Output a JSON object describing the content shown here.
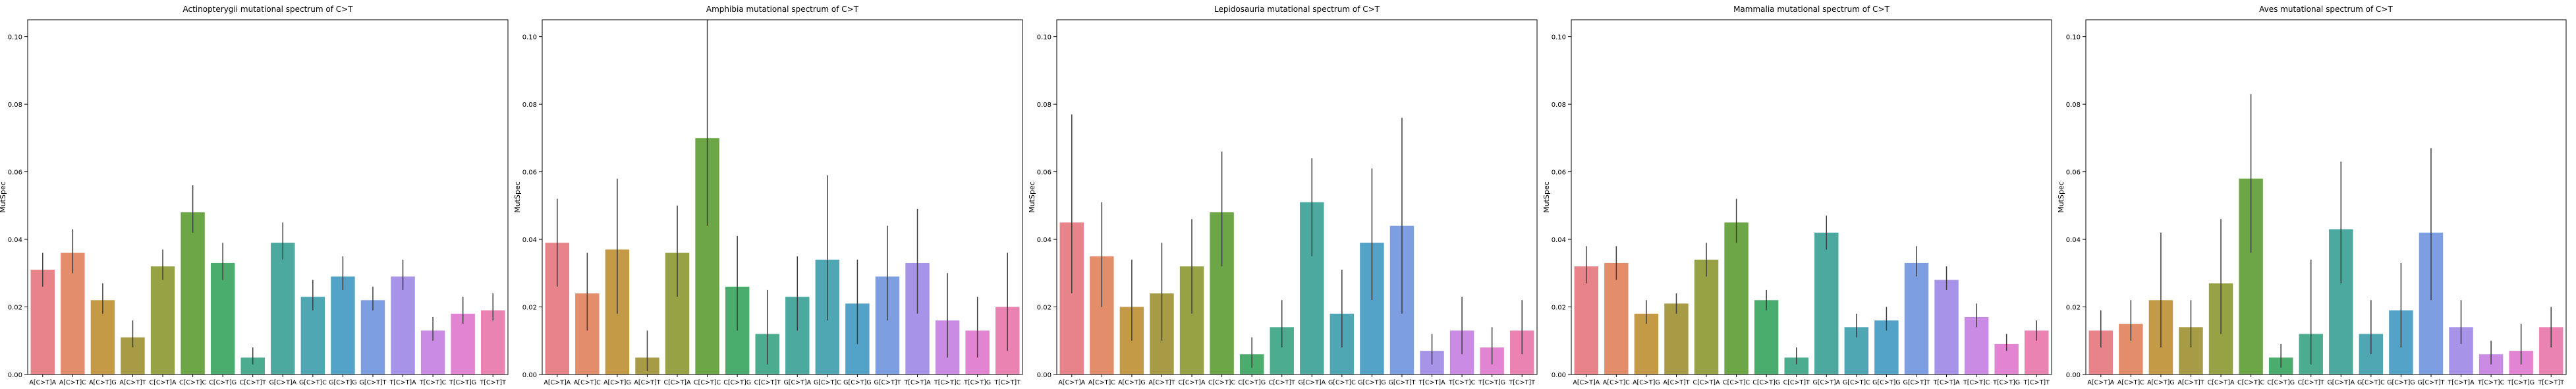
{
  "chart_data": [
    {
      "type": "bar",
      "title": "Actinopterygii mutational spectrum of C>T",
      "ylabel": "MutSpec",
      "ylim": [
        0,
        0.105
      ],
      "yticks": [
        "0.00",
        "0.02",
        "0.04",
        "0.06",
        "0.08",
        "0.10"
      ],
      "categories": [
        "A[C>T]A",
        "A[C>T]C",
        "A[C>T]G",
        "A[C>T]T",
        "C[C>T]A",
        "C[C>T]C",
        "C[C>T]G",
        "C[C>T]T",
        "G[C>T]A",
        "G[C>T]C",
        "G[C>T]G",
        "G[C>T]T",
        "T[C>T]A",
        "T[C>T]C",
        "T[C>T]G",
        "T[C>T]T"
      ],
      "values": [
        0.031,
        0.036,
        0.022,
        0.011,
        0.032,
        0.048,
        0.033,
        0.005,
        0.039,
        0.023,
        0.029,
        0.022,
        0.029,
        0.013,
        0.018,
        0.019
      ],
      "error_low": [
        0.026,
        0.03,
        0.018,
        0.008,
        0.028,
        0.042,
        0.028,
        0.003,
        0.034,
        0.019,
        0.025,
        0.019,
        0.025,
        0.01,
        0.015,
        0.016
      ],
      "error_high": [
        0.036,
        0.043,
        0.027,
        0.016,
        0.037,
        0.056,
        0.039,
        0.008,
        0.045,
        0.028,
        0.035,
        0.026,
        0.034,
        0.017,
        0.023,
        0.024
      ]
    },
    {
      "type": "bar",
      "title": "Amphibia mutational spectrum of C>T",
      "ylabel": "MutSpec",
      "ylim": [
        0,
        0.105
      ],
      "yticks": [
        "0.00",
        "0.02",
        "0.04",
        "0.06",
        "0.08",
        "0.10"
      ],
      "categories": [
        "A[C>T]A",
        "A[C>T]C",
        "A[C>T]G",
        "A[C>T]T",
        "C[C>T]A",
        "C[C>T]C",
        "C[C>T]G",
        "C[C>T]T",
        "G[C>T]A",
        "G[C>T]C",
        "G[C>T]G",
        "G[C>T]T",
        "T[C>T]A",
        "T[C>T]C",
        "T[C>T]G",
        "T[C>T]T"
      ],
      "values": [
        0.039,
        0.024,
        0.037,
        0.005,
        0.036,
        0.07,
        0.026,
        0.012,
        0.023,
        0.034,
        0.021,
        0.029,
        0.033,
        0.016,
        0.013,
        0.02
      ],
      "error_low": [
        0.026,
        0.013,
        0.018,
        0.001,
        0.023,
        0.044,
        0.013,
        0.003,
        0.013,
        0.016,
        0.009,
        0.016,
        0.018,
        0.005,
        0.005,
        0.007
      ],
      "error_high": [
        0.052,
        0.036,
        0.058,
        0.013,
        0.05,
        0.106,
        0.041,
        0.025,
        0.035,
        0.059,
        0.034,
        0.044,
        0.049,
        0.03,
        0.023,
        0.036
      ]
    },
    {
      "type": "bar",
      "title": "Lepidosauria mutational spectrum of C>T",
      "ylabel": "MutSpec",
      "ylim": [
        0,
        0.105
      ],
      "yticks": [
        "0.00",
        "0.02",
        "0.04",
        "0.06",
        "0.08",
        "0.10"
      ],
      "categories": [
        "A[C>T]A",
        "A[C>T]C",
        "A[C>T]G",
        "A[C>T]T",
        "C[C>T]A",
        "C[C>T]C",
        "C[C>T]G",
        "C[C>T]T",
        "G[C>T]A",
        "G[C>T]C",
        "G[C>T]G",
        "G[C>T]T",
        "T[C>T]A",
        "T[C>T]C",
        "T[C>T]G",
        "T[C>T]T"
      ],
      "values": [
        0.045,
        0.035,
        0.02,
        0.024,
        0.032,
        0.048,
        0.006,
        0.014,
        0.051,
        0.018,
        0.039,
        0.044,
        0.007,
        0.013,
        0.008,
        0.013
      ],
      "error_low": [
        0.024,
        0.02,
        0.01,
        0.01,
        0.018,
        0.032,
        0.002,
        0.008,
        0.035,
        0.008,
        0.022,
        0.018,
        0.003,
        0.006,
        0.003,
        0.006
      ],
      "error_high": [
        0.077,
        0.051,
        0.034,
        0.039,
        0.046,
        0.066,
        0.011,
        0.022,
        0.064,
        0.031,
        0.061,
        0.076,
        0.012,
        0.023,
        0.014,
        0.022
      ]
    },
    {
      "type": "bar",
      "title": "Mammalia mutational spectrum of C>T",
      "ylabel": "MutSpec",
      "ylim": [
        0,
        0.105
      ],
      "yticks": [
        "0.00",
        "0.02",
        "0.04",
        "0.06",
        "0.08",
        "0.10"
      ],
      "categories": [
        "A[C>T]A",
        "A[C>T]C",
        "A[C>T]G",
        "A[C>T]T",
        "C[C>T]A",
        "C[C>T]C",
        "C[C>T]G",
        "C[C>T]T",
        "G[C>T]A",
        "G[C>T]C",
        "G[C>T]G",
        "G[C>T]T",
        "T[C>T]A",
        "T[C>T]C",
        "T[C>T]G",
        "T[C>T]T"
      ],
      "values": [
        0.032,
        0.033,
        0.018,
        0.021,
        0.034,
        0.045,
        0.022,
        0.005,
        0.042,
        0.014,
        0.016,
        0.033,
        0.028,
        0.017,
        0.009,
        0.013
      ],
      "error_low": [
        0.027,
        0.028,
        0.015,
        0.018,
        0.029,
        0.039,
        0.019,
        0.003,
        0.037,
        0.011,
        0.013,
        0.029,
        0.025,
        0.014,
        0.007,
        0.01
      ],
      "error_high": [
        0.038,
        0.038,
        0.022,
        0.024,
        0.039,
        0.052,
        0.025,
        0.008,
        0.047,
        0.018,
        0.02,
        0.038,
        0.032,
        0.021,
        0.012,
        0.016
      ]
    },
    {
      "type": "bar",
      "title": "Aves mutational spectrum of C>T",
      "ylabel": "MutSpec",
      "ylim": [
        0,
        0.105
      ],
      "yticks": [
        "0.00",
        "0.02",
        "0.04",
        "0.06",
        "0.08",
        "0.10"
      ],
      "categories": [
        "A[C>T]A",
        "A[C>T]C",
        "A[C>T]G",
        "A[C>T]T",
        "C[C>T]A",
        "C[C>T]C",
        "C[C>T]G",
        "C[C>T]T",
        "G[C>T]A",
        "G[C>T]C",
        "G[C>T]G",
        "G[C>T]T",
        "T[C>T]A",
        "T[C>T]C",
        "T[C>T]G",
        "T[C>T]T"
      ],
      "values": [
        0.013,
        0.015,
        0.022,
        0.014,
        0.027,
        0.058,
        0.005,
        0.012,
        0.043,
        0.012,
        0.019,
        0.042,
        0.014,
        0.006,
        0.007,
        0.014
      ],
      "error_low": [
        0.008,
        0.01,
        0.008,
        0.008,
        0.012,
        0.036,
        0.002,
        0.003,
        0.027,
        0.006,
        0.008,
        0.022,
        0.009,
        0.003,
        0.003,
        0.008
      ],
      "error_high": [
        0.019,
        0.022,
        0.042,
        0.022,
        0.046,
        0.083,
        0.009,
        0.034,
        0.063,
        0.022,
        0.033,
        0.067,
        0.022,
        0.01,
        0.015,
        0.02
      ]
    }
  ],
  "colors": [
    "#e8838a",
    "#e48d6a",
    "#c49a47",
    "#a79b46",
    "#97a245",
    "#6ca646",
    "#4aac6d",
    "#4bac8f",
    "#4ca99f",
    "#4ea7b3",
    "#53a3c9",
    "#7d9fe2",
    "#a794e8",
    "#c98be3",
    "#e284d2",
    "#ea83b2"
  ]
}
